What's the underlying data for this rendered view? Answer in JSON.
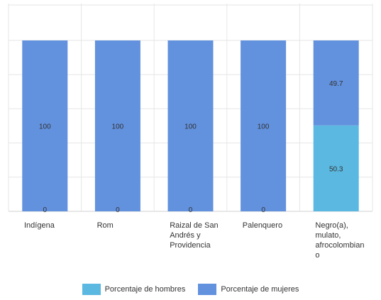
{
  "chart_data": {
    "type": "bar",
    "stacked": true,
    "categories": [
      "Indígena",
      "Rom",
      "Raizal de San Andrés y Providencia",
      "Palenquero",
      "Negro(a), mulato, afrocolombiano"
    ],
    "category_labels": [
      [
        "Indígena"
      ],
      [
        "Rom"
      ],
      [
        "Raizal de San",
        "Andrés y",
        "Providencia"
      ],
      [
        "Palenquero"
      ],
      [
        "Negro(a),",
        "mulato,",
        "afrocolombian",
        "o"
      ]
    ],
    "series": [
      {
        "name": "Porcentaje de hombres",
        "color": "#5bb8e0",
        "values": [
          0,
          0,
          0,
          0,
          50.3
        ]
      },
      {
        "name": "Porcentaje de mujeres",
        "color": "#6291de",
        "values": [
          100,
          100,
          100,
          100,
          49.7
        ]
      }
    ],
    "data_labels": {
      "hombres": [
        "0",
        "0",
        "0",
        "0",
        "50.3"
      ],
      "mujeres": [
        "100",
        "100",
        "100",
        "100",
        "49.7"
      ]
    },
    "ylim": [
      0,
      100
    ],
    "grid": true,
    "legend_position": "bottom"
  }
}
